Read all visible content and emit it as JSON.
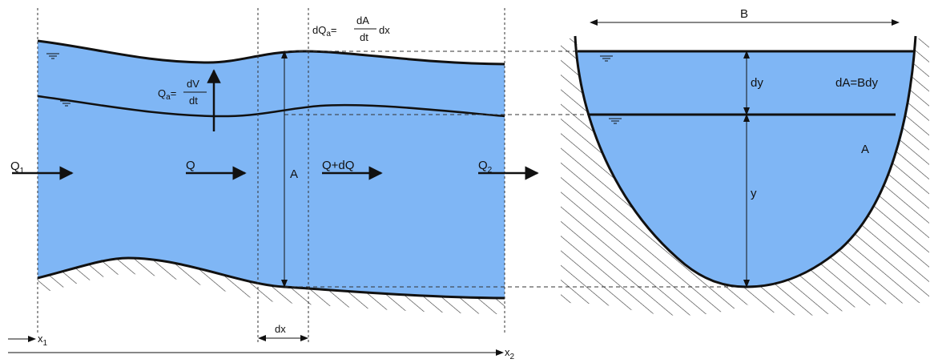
{
  "diagram": {
    "colors": {
      "water": "#7fb6f5",
      "line": "#111111",
      "hatch": "#333333"
    },
    "longitudinal": {
      "inflow": {
        "symbol": "Q",
        "subscript": "1"
      },
      "flow": "Q",
      "flow_plus": "Q+dQ",
      "outflow": {
        "symbol": "Q",
        "subscript": "2"
      },
      "area": "A",
      "storage": {
        "lhs": "Q",
        "lhs_sub": "a",
        "eq": "=",
        "num": "dV",
        "den": "dt"
      },
      "lateral": {
        "lhs": "dQ",
        "lhs_sub": "a",
        "eq": "=",
        "num": "dA",
        "den": "dt",
        "tail": "dx"
      },
      "element_width": "dx",
      "x1": {
        "symbol": "x",
        "subscript": "1"
      },
      "x2": {
        "symbol": "x",
        "subscript": "2"
      }
    },
    "cross_section": {
      "top_width": "B",
      "depth_increment": "dy",
      "strip_area": "dA=Bdy",
      "area": "A",
      "depth": "y"
    }
  }
}
